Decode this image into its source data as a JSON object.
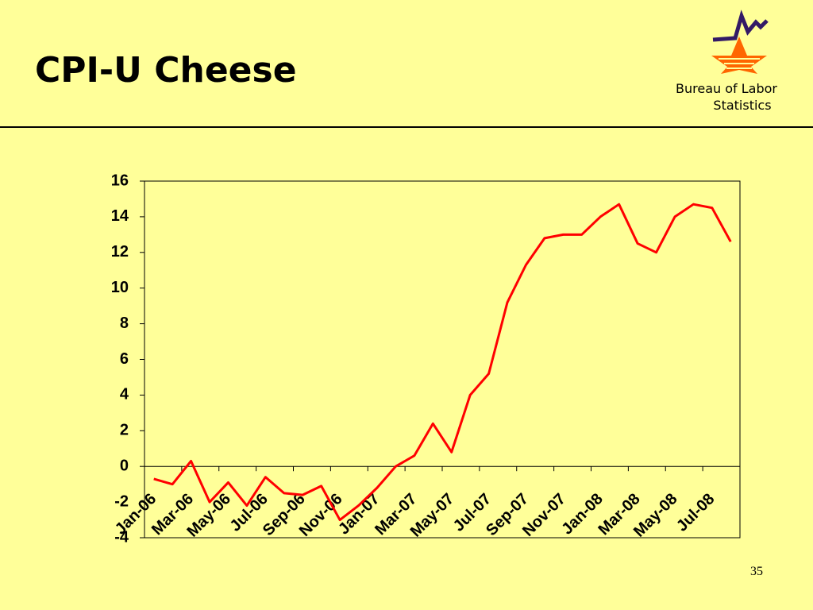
{
  "header": {
    "title": "CPI-U Cheese",
    "logo_text": [
      "Bureau of Labor",
      "Statistics"
    ]
  },
  "page_number": "35",
  "chart_data": {
    "type": "line",
    "categories": [
      "Jan-06",
      null,
      "Mar-06",
      null,
      "May-06",
      null,
      "Jul-06",
      null,
      "Sep-06",
      null,
      "Nov-06",
      null,
      "Jan-07",
      null,
      "Mar-07",
      null,
      "May-07",
      null,
      "Jul-07",
      null,
      "Sep-07",
      null,
      "Nov-07",
      null,
      "Jan-08",
      null,
      "Mar-08",
      null,
      "May-08",
      null,
      "Jul-08",
      null
    ],
    "series": [
      {
        "name": "CPI-U Cheese",
        "color": "#ff0000",
        "values": [
          -0.7,
          -1.0,
          0.3,
          -2.0,
          -0.9,
          -2.2,
          -0.6,
          -1.5,
          -1.6,
          -1.1,
          -3.0,
          -2.2,
          -1.2,
          0,
          0.6,
          2.4,
          0.8,
          4.0,
          5.2,
          9.2,
          11.3,
          12.8,
          13.0,
          13.0,
          14.0,
          14.7,
          12.5,
          12.0,
          14.0,
          14.7,
          14.5,
          12.6
        ]
      }
    ],
    "ylim": [
      -4,
      16
    ],
    "yticks": [
      -4,
      -2,
      0,
      2,
      4,
      6,
      8,
      10,
      12,
      14,
      16
    ],
    "grid": false
  }
}
